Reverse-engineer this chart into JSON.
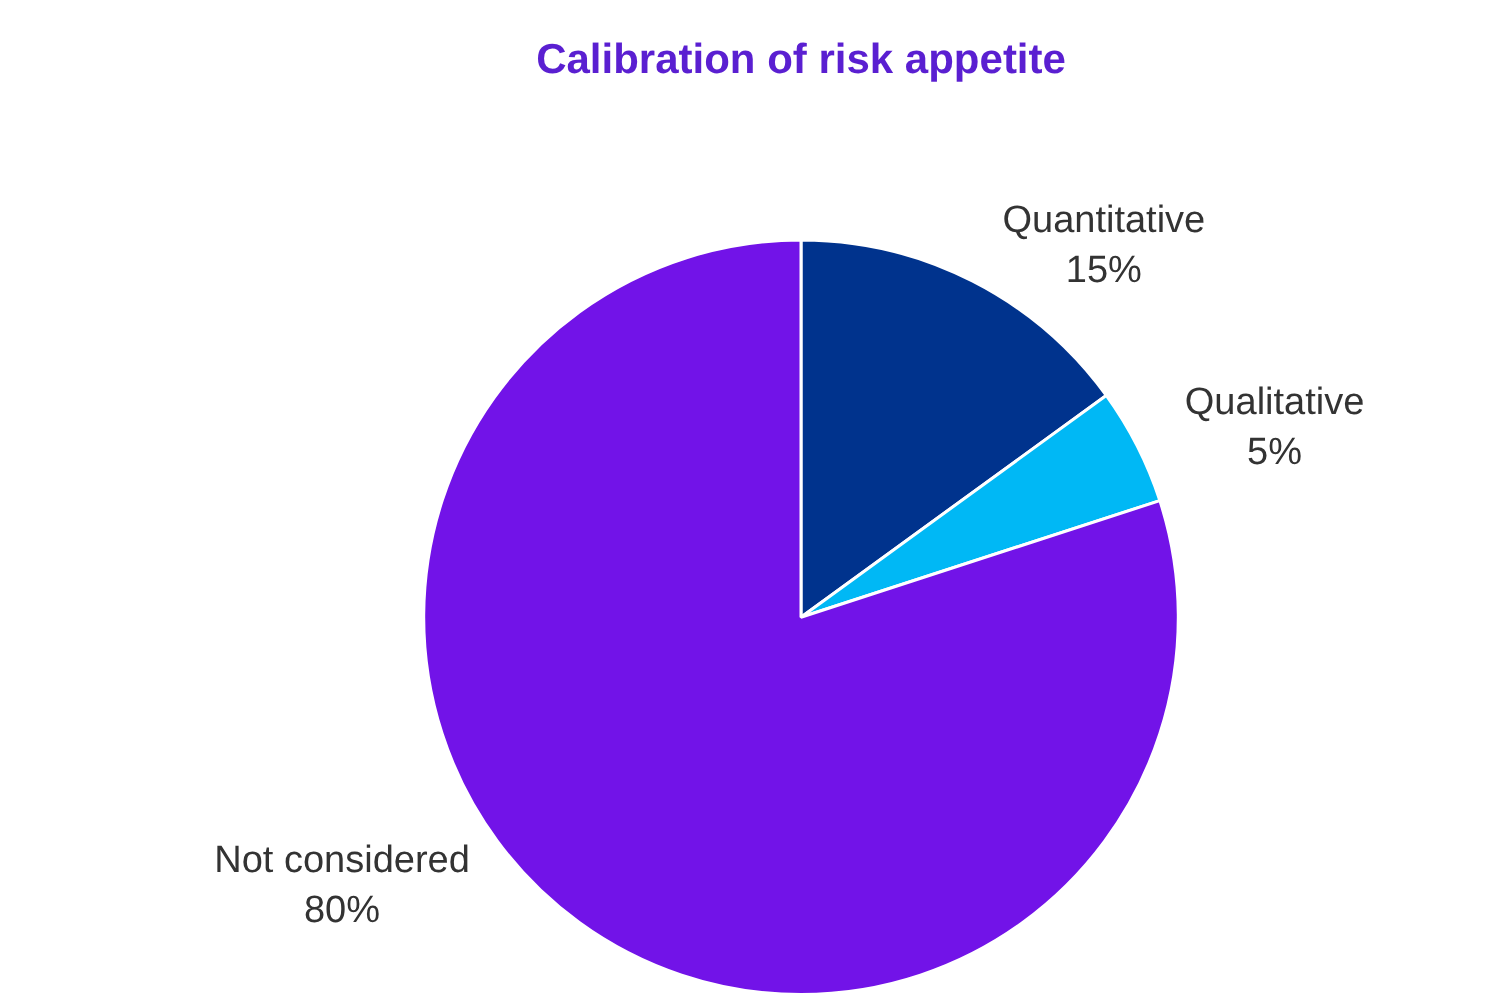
{
  "chart_data": {
    "type": "pie",
    "title": "Calibration of risk appetite",
    "categories": [
      "Quantitative",
      "Qualitative",
      "Not considered"
    ],
    "values": [
      15,
      5,
      80
    ],
    "colors": [
      "#00338d",
      "#00b8f5",
      "#7213e8"
    ],
    "value_labels": [
      "15%",
      "5%",
      "80%"
    ],
    "legend": false
  }
}
